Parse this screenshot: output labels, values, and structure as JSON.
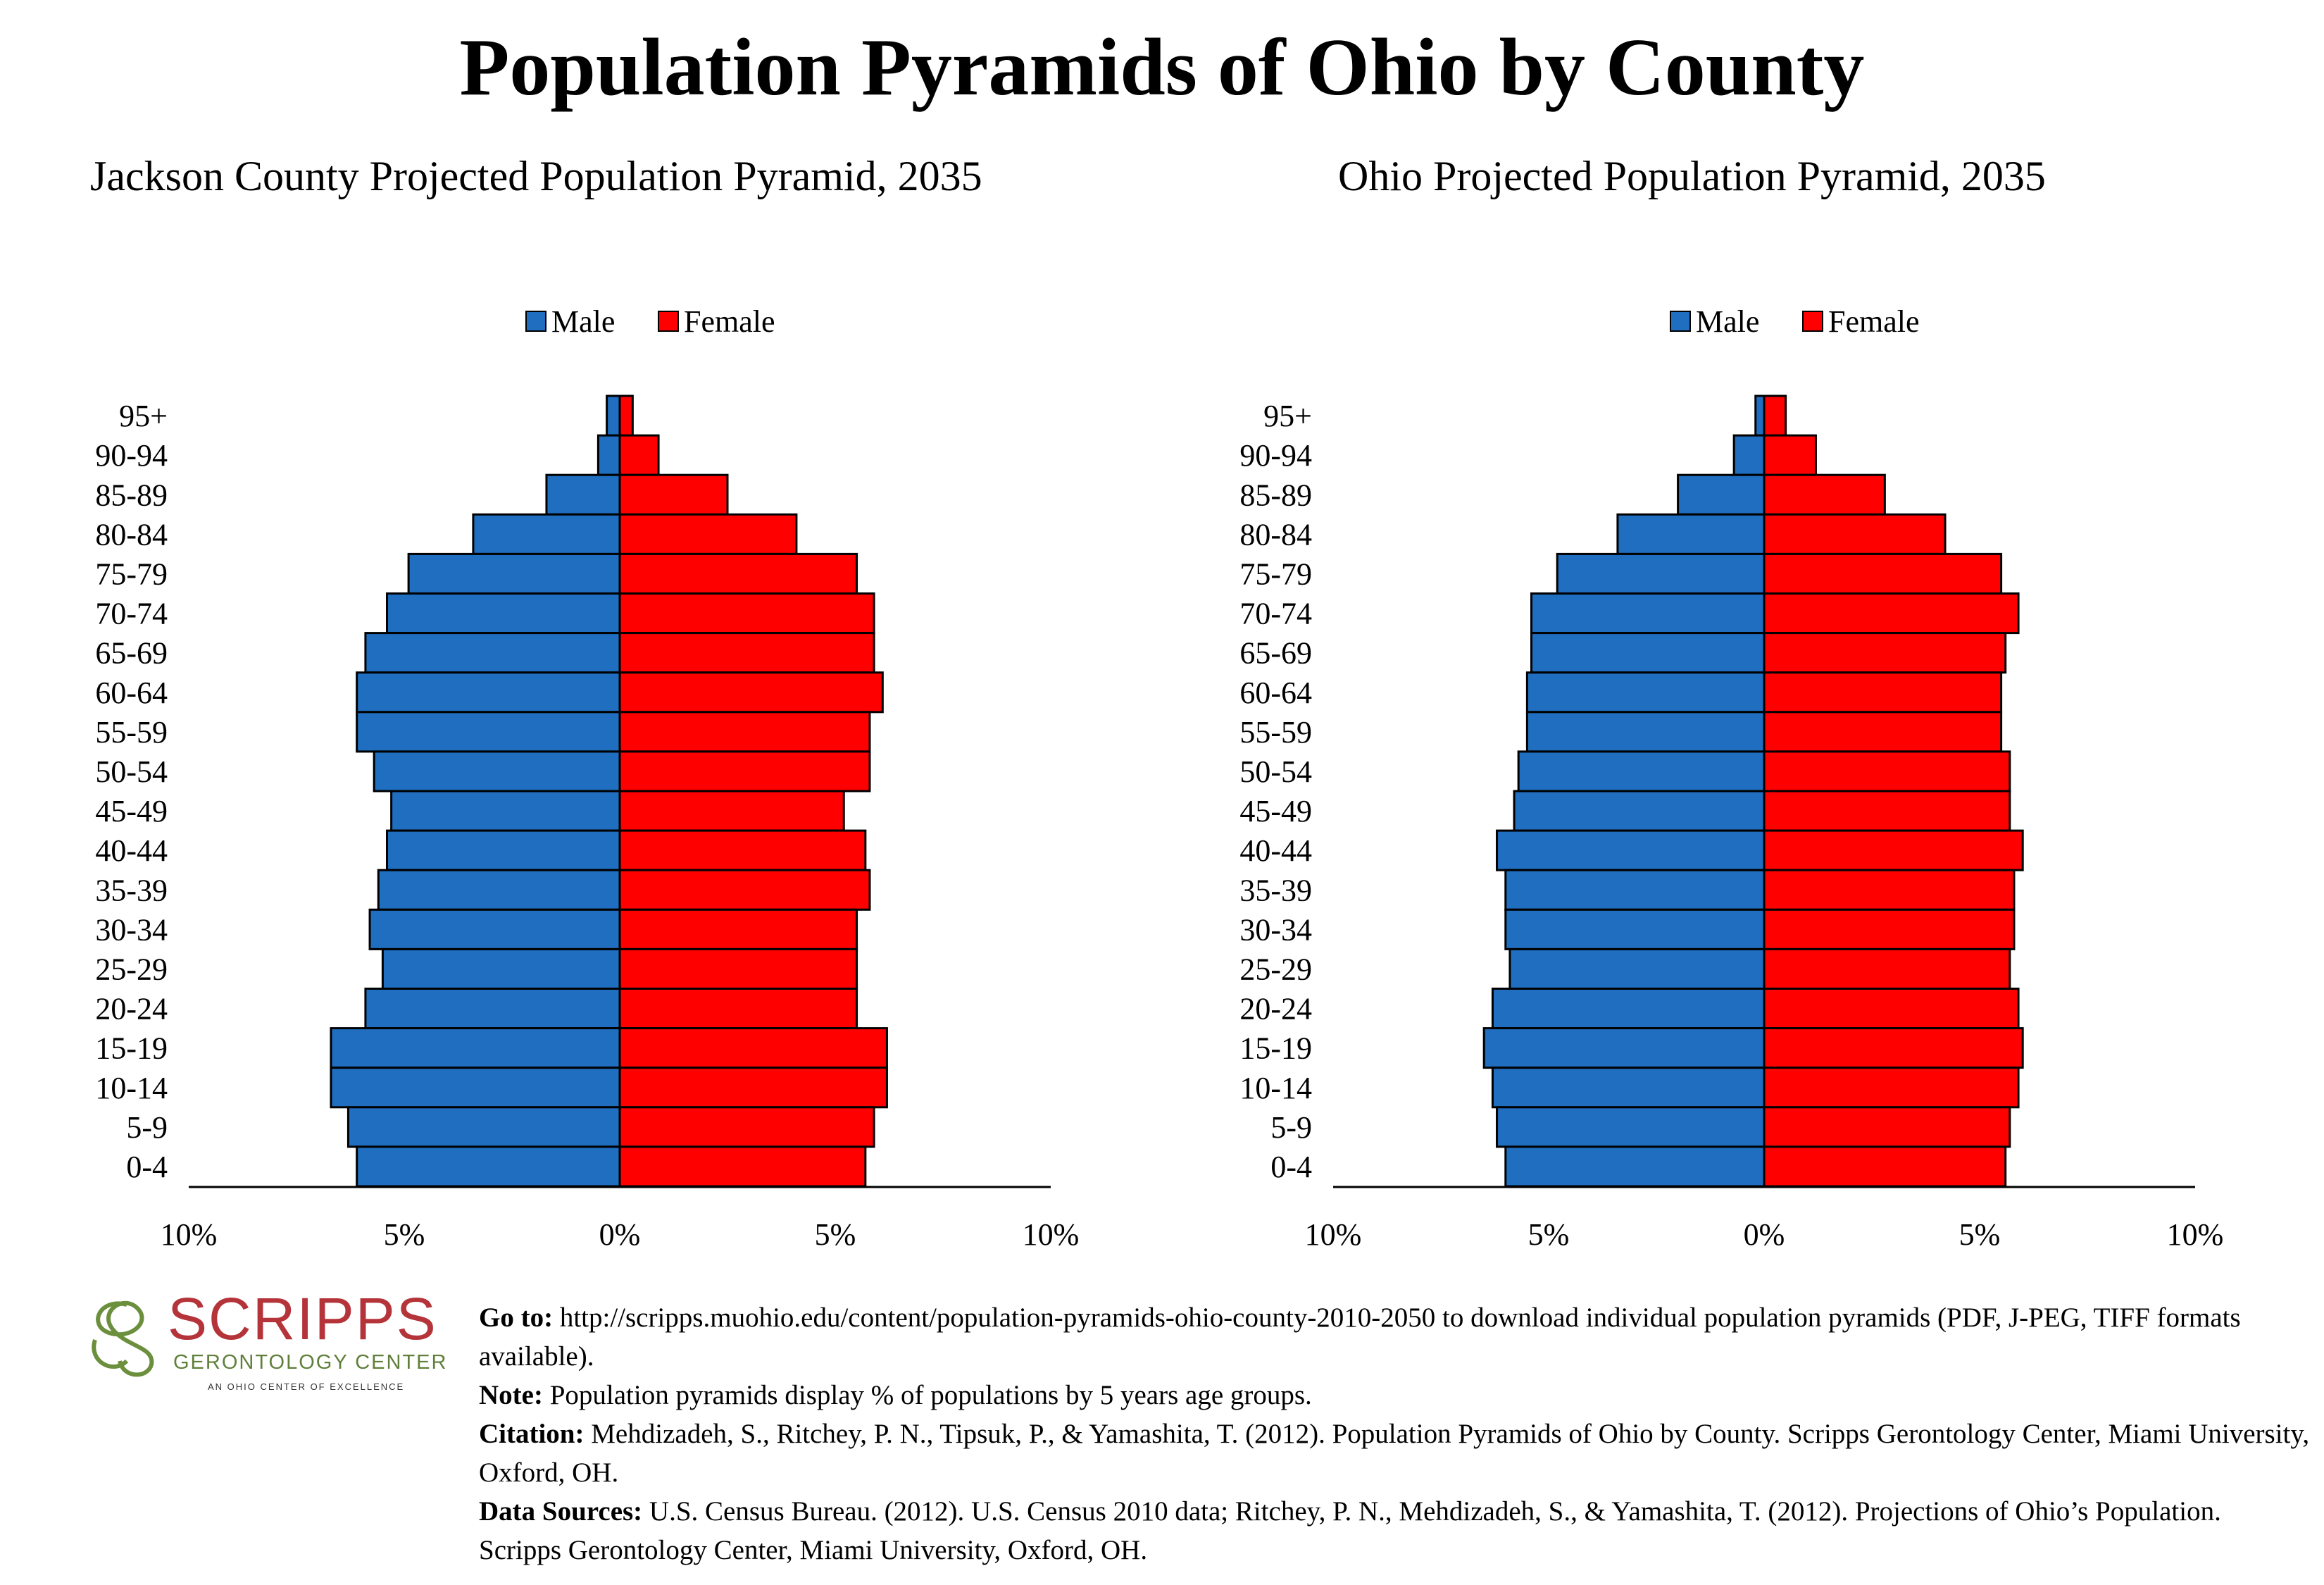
{
  "title": "Population Pyramids of Ohio by County",
  "colors": {
    "male": "#1f6ebf",
    "female": "#ff0000",
    "axis": "#000000"
  },
  "chart_data": [
    {
      "type": "bar",
      "title": "Jackson County Projected Population Pyramid, 2035",
      "legend": [
        "Male",
        "Female"
      ],
      "legend_position": "top",
      "categories": [
        "95+",
        "90-94",
        "85-89",
        "80-84",
        "75-79",
        "70-74",
        "65-69",
        "60-64",
        "55-59",
        "50-54",
        "45-49",
        "40-44",
        "35-39",
        "30-34",
        "25-29",
        "20-24",
        "15-19",
        "10-14",
        "5-9",
        "0-4"
      ],
      "series": [
        {
          "name": "Male",
          "values": [
            0.3,
            0.5,
            1.7,
            3.4,
            4.9,
            5.4,
            5.9,
            6.1,
            6.1,
            5.7,
            5.3,
            5.4,
            5.6,
            5.8,
            5.5,
            5.9,
            6.7,
            6.7,
            6.3,
            6.1
          ]
        },
        {
          "name": "Female",
          "values": [
            0.3,
            0.9,
            2.5,
            4.1,
            5.5,
            5.9,
            5.9,
            6.1,
            5.8,
            5.8,
            5.2,
            5.7,
            5.8,
            5.5,
            5.5,
            5.5,
            6.2,
            6.2,
            5.9,
            5.7
          ]
        }
      ],
      "xlim": [
        -10,
        10
      ],
      "xticks": [
        "10%",
        "5%",
        "0%",
        "5%",
        "10%"
      ]
    },
    {
      "type": "bar",
      "title": "Ohio Projected Population Pyramid, 2035",
      "legend": [
        "Male",
        "Female"
      ],
      "legend_position": "top",
      "categories": [
        "95+",
        "90-94",
        "85-89",
        "80-84",
        "75-79",
        "70-74",
        "65-69",
        "60-64",
        "55-59",
        "50-54",
        "45-49",
        "40-44",
        "35-39",
        "30-34",
        "25-29",
        "20-24",
        "15-19",
        "10-14",
        "5-9",
        "0-4"
      ],
      "series": [
        {
          "name": "Male",
          "values": [
            0.2,
            0.7,
            2.0,
            3.4,
            4.8,
            5.4,
            5.4,
            5.5,
            5.5,
            5.7,
            5.8,
            6.2,
            6.0,
            6.0,
            5.9,
            6.3,
            6.5,
            6.3,
            6.2,
            6.0
          ]
        },
        {
          "name": "Female",
          "values": [
            0.5,
            1.2,
            2.8,
            4.2,
            5.5,
            5.9,
            5.6,
            5.5,
            5.5,
            5.7,
            5.7,
            6.0,
            5.8,
            5.8,
            5.7,
            5.9,
            6.0,
            5.9,
            5.7,
            5.6
          ]
        }
      ],
      "xlim": [
        -10,
        10
      ],
      "xticks": [
        "10%",
        "5%",
        "0%",
        "5%",
        "10%"
      ]
    }
  ],
  "logo": {
    "word": "SCRIPPS",
    "subtitle": "GERONTOLOGY CENTER",
    "tagline": "AN OHIO CENTER OF EXCELLENCE"
  },
  "footer": {
    "goto_label": "Go to:",
    "goto_text": " http://scripps.muohio.edu/content/population-pyramids-ohio-county-2010-2050 to download individual population pyramids (PDF, J-PEG, TIFF formats available).",
    "note_label": "Note:",
    "note_text": " Population pyramids display % of populations by 5 years age groups.",
    "citation_label": "Citation:",
    "citation_text": " Mehdizadeh, S., Ritchey, P. N., Tipsuk, P., & Yamashita, T. (2012). Population Pyramids of Ohio by County. Scripps Gerontology Center, Miami University, Oxford, OH.",
    "sources_label": "Data Sources:",
    "sources_text": " U.S. Census Bureau. (2012). U.S. Census 2010 data; Ritchey, P. N., Mehdizadeh, S., & Yamashita, T. (2012). Projections of Ohio’s Population. Scripps Gerontology Center, Miami University, Oxford, OH."
  }
}
